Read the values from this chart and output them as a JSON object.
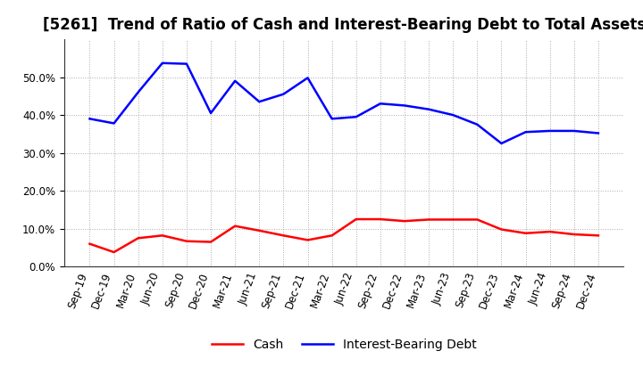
{
  "title": "[5261]  Trend of Ratio of Cash and Interest-Bearing Debt to Total Assets",
  "x_labels": [
    "Sep-19",
    "Dec-19",
    "Mar-20",
    "Jun-20",
    "Sep-20",
    "Dec-20",
    "Mar-21",
    "Jun-21",
    "Sep-21",
    "Dec-21",
    "Mar-22",
    "Jun-22",
    "Sep-22",
    "Dec-22",
    "Mar-23",
    "Jun-23",
    "Sep-23",
    "Dec-23",
    "Mar-24",
    "Jun-24",
    "Sep-24",
    "Dec-24"
  ],
  "cash": [
    0.06,
    0.038,
    0.075,
    0.082,
    0.067,
    0.065,
    0.107,
    0.095,
    0.082,
    0.07,
    0.082,
    0.125,
    0.125,
    0.12,
    0.124,
    0.124,
    0.124,
    0.098,
    0.088,
    0.092,
    0.085,
    0.082
  ],
  "interest_bearing_debt": [
    0.39,
    0.378,
    0.46,
    0.537,
    0.535,
    0.405,
    0.49,
    0.435,
    0.455,
    0.498,
    0.39,
    0.395,
    0.43,
    0.425,
    0.415,
    0.4,
    0.375,
    0.325,
    0.355,
    0.358,
    0.358,
    0.352
  ],
  "cash_color": "#ff0000",
  "debt_color": "#0000ff",
  "background_color": "#ffffff",
  "plot_bg_color": "#ffffff",
  "grid_color": "#aaaaaa",
  "ylim": [
    0.0,
    0.6
  ],
  "yticks": [
    0.0,
    0.1,
    0.2,
    0.3,
    0.4,
    0.5
  ],
  "legend_cash": "Cash",
  "legend_debt": "Interest-Bearing Debt",
  "title_fontsize": 12,
  "axis_fontsize": 8.5,
  "legend_fontsize": 10,
  "line_width": 1.8
}
